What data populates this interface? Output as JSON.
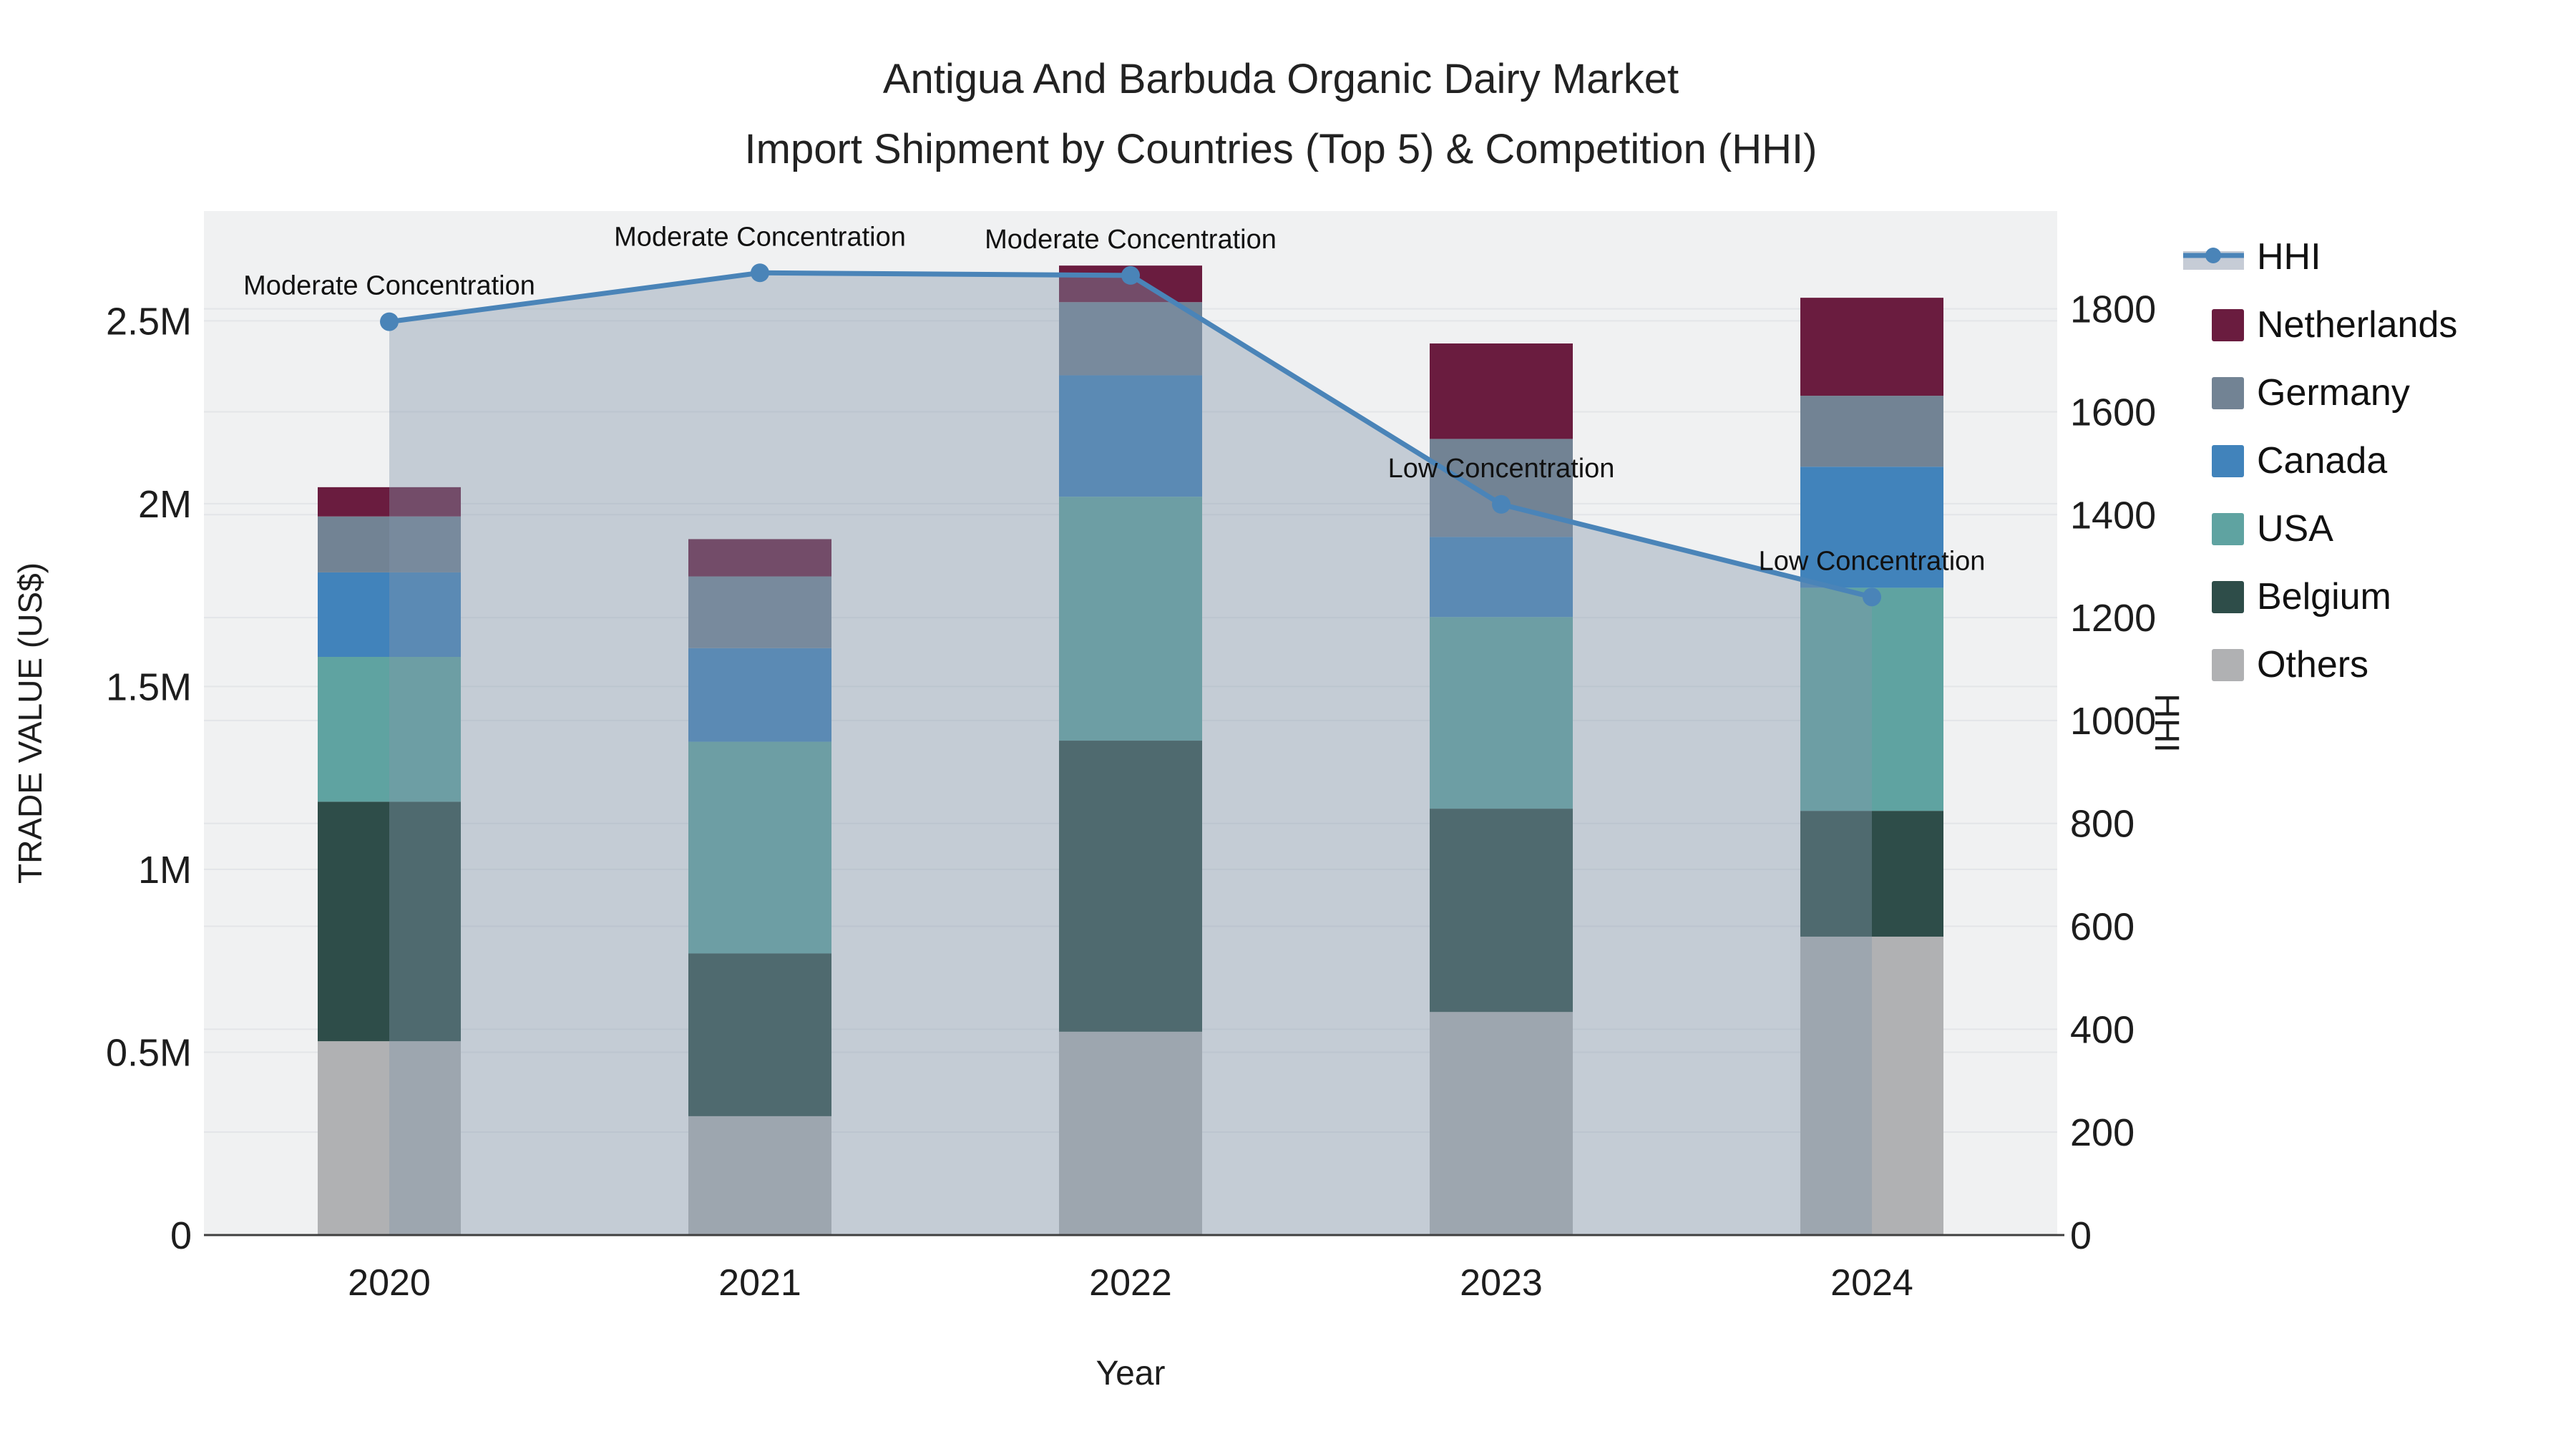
{
  "title": {
    "line1": "Antigua And Barbuda Organic Dairy Market",
    "line2": "Import Shipment by Countries (Top 5) & Competition (HHI)"
  },
  "chart_data": {
    "type": "bar",
    "subtype": "stacked-bars-with-line-dual-axis",
    "categories": [
      "2020",
      "2021",
      "2022",
      "2023",
      "2024"
    ],
    "series": [
      {
        "name": "Netherlands",
        "color": "#6a1c3f",
        "values": [
          80000,
          102000,
          100000,
          261000,
          268000
        ]
      },
      {
        "name": "Germany",
        "color": "#728394",
        "values": [
          153000,
          196000,
          200000,
          268000,
          194000
        ]
      },
      {
        "name": "Canada",
        "color": "#4183bb",
        "values": [
          231000,
          256000,
          332000,
          219000,
          331000
        ]
      },
      {
        "name": "USA",
        "color": "#5fa3a1",
        "values": [
          396000,
          579000,
          667000,
          524000,
          610000
        ]
      },
      {
        "name": "Belgium",
        "color": "#2e4d49",
        "values": [
          655000,
          445000,
          796000,
          556000,
          344000
        ]
      },
      {
        "name": "Others",
        "color": "#b0b1b3",
        "values": [
          530000,
          325000,
          556000,
          610000,
          816000
        ]
      }
    ],
    "stack_order_bottom_to_top": [
      "Others",
      "Belgium",
      "USA",
      "Canada",
      "Germany",
      "Netherlands"
    ],
    "line": {
      "name": "HHI",
      "color": "#4a84b8",
      "area_fill": "rgba(130,150,170,0.40)",
      "values": [
        1775,
        1870,
        1865,
        1420,
        1240
      ]
    },
    "annotations": [
      "Moderate Concentration",
      "Moderate Concentration",
      "Moderate Concentration",
      "Low Concentration",
      "Low Concentration"
    ],
    "xlabel": "Year",
    "ylabel_left": "TRADE VALUE (US$)",
    "ylabel_right": "HHI",
    "yticks_left": {
      "values": [
        0,
        500000,
        1000000,
        1500000,
        2000000,
        2500000
      ],
      "labels": [
        "0",
        "0.5M",
        "1M",
        "1.5M",
        "2M",
        "2.5M"
      ]
    },
    "yticks_right": {
      "values": [
        0,
        200,
        400,
        600,
        800,
        1000,
        1200,
        1400,
        1600,
        1800
      ],
      "labels": [
        "0",
        "200",
        "400",
        "600",
        "800",
        "1000",
        "1200",
        "1400",
        "1600",
        "1800"
      ]
    },
    "ylim_left": [
      0,
      2800000
    ],
    "ylim_right": [
      0,
      1990
    ],
    "grid": true,
    "legend_position": "right",
    "plot_bg": "#f0f1f2",
    "grid_color": "#e3e5e8",
    "axis_line_color": "#3f3f3f",
    "text_color": "#1d1d1d"
  },
  "legend": {
    "entries": [
      "HHI",
      "Netherlands",
      "Germany",
      "Canada",
      "USA",
      "Belgium",
      "Others"
    ]
  }
}
